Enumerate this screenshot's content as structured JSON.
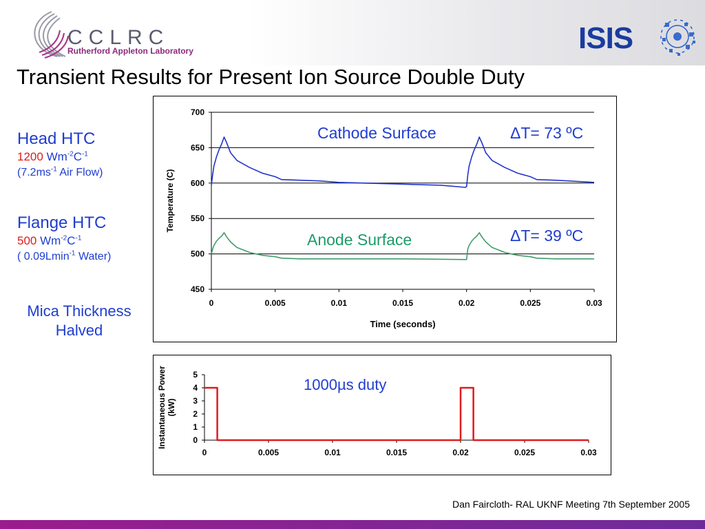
{
  "header": {
    "org_name": "CCLRC",
    "org_subtitle": "Rutherford Appleton Laboratory",
    "partner_logo_text": "ISIS"
  },
  "title": "Transient Results for Present Ion Source Double Duty",
  "sidebar": {
    "head_htc": {
      "label": "Head HTC",
      "value": "1200",
      "unit_base": "Wm",
      "unit_exp1": "-2",
      "unit_c": "C",
      "unit_exp2": "-1",
      "note_pre": "(7.2ms",
      "note_exp": "-1",
      "note_post": " Air Flow)"
    },
    "flange_htc": {
      "label": "Flange HTC",
      "value": "500",
      "unit_base": "Wm",
      "unit_exp1": "-2",
      "unit_c": "C",
      "unit_exp2": "-1",
      "note_pre": "( 0.09Lmin",
      "note_exp": "-1",
      "note_post": " Water)"
    },
    "mica": {
      "line1": "Mica Thickness",
      "line2": "Halved"
    }
  },
  "footer": "Dan Faircloth- RAL UKNF Meeting 7th September 2005",
  "colors": {
    "cathode": "#2233cc",
    "anode": "#3f9e6b",
    "power": "#e01b1b",
    "annotation_blue": "#1f3dd0",
    "annotation_green": "#1f9a6a"
  },
  "chart_data": [
    {
      "type": "line",
      "xlabel": "Time (seconds)",
      "ylabel": "Temperature (C)",
      "xlim": [
        0,
        0.03
      ],
      "ylim": [
        450,
        700
      ],
      "x_ticks": [
        0,
        0.005,
        0.01,
        0.015,
        0.02,
        0.025,
        0.03
      ],
      "x_tick_labels": [
        "0",
        "0.005",
        "0.01",
        "0.015",
        "0.02",
        "0.025",
        "0.03"
      ],
      "y_ticks": [
        450,
        500,
        550,
        600,
        650,
        700
      ],
      "y_tick_labels": [
        "450",
        "500",
        "550",
        "600",
        "650",
        "700"
      ],
      "grid": "horizontal",
      "annotations": [
        {
          "text": "Cathode Surface",
          "series": "cathode"
        },
        {
          "text": "ΔT= 73 ºC",
          "series": "cathode"
        },
        {
          "text": "Anode Surface",
          "series": "anode"
        },
        {
          "text": "ΔT= 39 ºC",
          "series": "anode"
        }
      ],
      "series": [
        {
          "key": "cathode",
          "points": [
            [
              0,
              597
            ],
            [
              0.0001,
              612
            ],
            [
              0.0002,
              624
            ],
            [
              0.0004,
              637
            ],
            [
              0.0006,
              647
            ],
            [
              0.0008,
              655
            ],
            [
              0.001,
              665
            ],
            [
              0.0012,
              657
            ],
            [
              0.0015,
              643
            ],
            [
              0.002,
              632
            ],
            [
              0.003,
              622
            ],
            [
              0.004,
              614
            ],
            [
              0.005,
              609
            ],
            [
              0.0055,
              605
            ],
            [
              0.007,
              604
            ],
            [
              0.0085,
              603
            ],
            [
              0.01,
              601
            ],
            [
              0.012,
              600
            ],
            [
              0.014,
              599
            ],
            [
              0.016,
              598
            ],
            [
              0.018,
              597
            ],
            [
              0.0199,
              594
            ],
            [
              0.02,
              595
            ],
            [
              0.0201,
              612
            ],
            [
              0.0202,
              624
            ],
            [
              0.0204,
              637
            ],
            [
              0.0206,
              647
            ],
            [
              0.0208,
              655
            ],
            [
              0.021,
              665
            ],
            [
              0.0212,
              657
            ],
            [
              0.0215,
              643
            ],
            [
              0.022,
              632
            ],
            [
              0.023,
              622
            ],
            [
              0.024,
              614
            ],
            [
              0.025,
              609
            ],
            [
              0.0255,
              605
            ],
            [
              0.027,
              604
            ],
            [
              0.028,
              603
            ],
            [
              0.03,
              601
            ]
          ]
        },
        {
          "key": "anode",
          "points": [
            [
              0,
              500
            ],
            [
              0.0001,
              507
            ],
            [
              0.0002,
              512
            ],
            [
              0.0004,
              518
            ],
            [
              0.0006,
              522
            ],
            [
              0.0008,
              525
            ],
            [
              0.001,
              530
            ],
            [
              0.0012,
              524
            ],
            [
              0.0015,
              517
            ],
            [
              0.002,
              509
            ],
            [
              0.003,
              502
            ],
            [
              0.004,
              498
            ],
            [
              0.005,
              496
            ],
            [
              0.0055,
              494
            ],
            [
              0.007,
              493
            ],
            [
              0.01,
              493
            ],
            [
              0.015,
              493
            ],
            [
              0.0199,
              492
            ],
            [
              0.02,
              492
            ],
            [
              0.0201,
              507
            ],
            [
              0.0202,
              512
            ],
            [
              0.0204,
              518
            ],
            [
              0.0206,
              522
            ],
            [
              0.0208,
              525
            ],
            [
              0.021,
              530
            ],
            [
              0.0212,
              524
            ],
            [
              0.0215,
              517
            ],
            [
              0.022,
              509
            ],
            [
              0.023,
              502
            ],
            [
              0.024,
              498
            ],
            [
              0.025,
              496
            ],
            [
              0.0255,
              494
            ],
            [
              0.027,
              493
            ],
            [
              0.03,
              493
            ]
          ]
        }
      ]
    },
    {
      "type": "line",
      "xlabel": "",
      "ylabel": "Instantaneous Power (kW)",
      "xlim": [
        0,
        0.03
      ],
      "ylim": [
        0,
        5
      ],
      "x_ticks": [
        0,
        0.005,
        0.01,
        0.015,
        0.02,
        0.025,
        0.03
      ],
      "x_tick_labels": [
        "0",
        "0.005",
        "0.01",
        "0.015",
        "0.02",
        "0.025",
        "0.03"
      ],
      "y_ticks": [
        0,
        1,
        2,
        3,
        4,
        5
      ],
      "y_tick_labels": [
        "0",
        "1",
        "2",
        "3",
        "4",
        "5"
      ],
      "grid": "none",
      "annotations": [
        {
          "text": "1000µs duty"
        }
      ],
      "series": [
        {
          "key": "power",
          "points": [
            [
              0,
              4
            ],
            [
              0.001,
              4
            ],
            [
              0.001,
              0
            ],
            [
              0.02,
              0
            ],
            [
              0.02,
              4
            ],
            [
              0.021,
              4
            ],
            [
              0.021,
              0
            ],
            [
              0.03,
              0
            ]
          ]
        }
      ]
    }
  ]
}
